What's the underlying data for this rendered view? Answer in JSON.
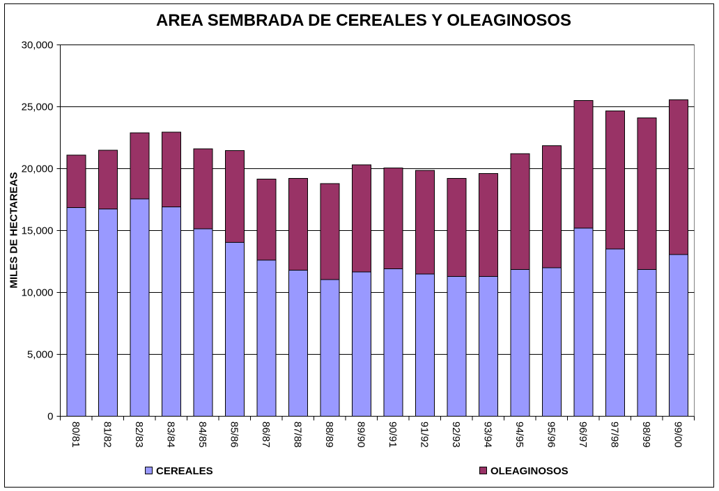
{
  "chart_data": {
    "type": "bar",
    "stacked": true,
    "title": "AREA SEMBRADA DE CEREALES Y OLEAGINOSOS",
    "ylabel": "MILES DE HECTAREAS",
    "ylim": [
      0,
      30000
    ],
    "yticks": [
      0,
      5000,
      10000,
      15000,
      20000,
      25000,
      30000
    ],
    "ytick_labels": [
      "0",
      "5,000",
      "10,000",
      "15,000",
      "20,000",
      "25,000",
      "30,000"
    ],
    "categories": [
      "80/81",
      "81/82",
      "82/83",
      "83/84",
      "84/85",
      "85/86",
      "86/87",
      "87/88",
      "88/89",
      "89/90",
      "90/91",
      "91/92",
      "92/93",
      "93/94",
      "94/95",
      "95/96",
      "96/97",
      "97/98",
      "98/99",
      "99/00"
    ],
    "series": [
      {
        "name": "CEREALES",
        "color": "#9999FF",
        "values": [
          16850,
          16750,
          17550,
          16900,
          15150,
          14050,
          12600,
          11800,
          11050,
          11650,
          11900,
          11500,
          11300,
          11300,
          11850,
          12000,
          15200,
          13500,
          11850,
          13050
        ]
      },
      {
        "name": "OLEAGINOSOS",
        "color": "#993366",
        "values": [
          4250,
          4750,
          5350,
          6050,
          6450,
          7400,
          6550,
          7400,
          7750,
          8650,
          8150,
          8350,
          7900,
          8300,
          9350,
          9850,
          10300,
          11150,
          12250,
          12500
        ]
      }
    ],
    "grid": true,
    "legend": "bottom"
  }
}
